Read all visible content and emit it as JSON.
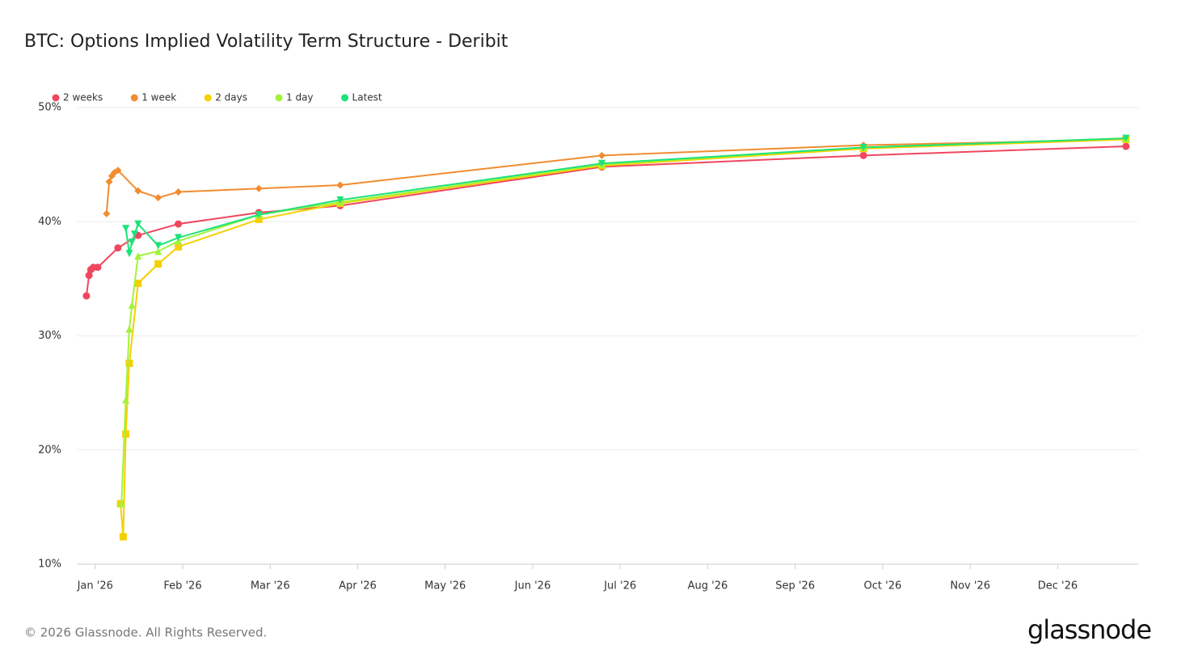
{
  "chart_data": {
    "type": "line",
    "title": "BTC: Options Implied Volatility Term Structure - Deribit",
    "xlim": [
      -0.21,
      11.92
    ],
    "ylim": [
      10,
      50
    ],
    "xticks": [
      {
        "value": 0,
        "label": "Jan '26"
      },
      {
        "value": 1,
        "label": "Feb '26"
      },
      {
        "value": 2,
        "label": "Mar '26"
      },
      {
        "value": 3,
        "label": "Apr '26"
      },
      {
        "value": 4,
        "label": "May '26"
      },
      {
        "value": 5,
        "label": "Jun '26"
      },
      {
        "value": 6,
        "label": "Jul '26"
      },
      {
        "value": 7,
        "label": "Aug '26"
      },
      {
        "value": 8,
        "label": "Sep '26"
      },
      {
        "value": 9,
        "label": "Oct '26"
      },
      {
        "value": 10,
        "label": "Nov '26"
      },
      {
        "value": 11,
        "label": "Dec '26"
      }
    ],
    "yticks": [
      {
        "value": 10,
        "label": "10%"
      },
      {
        "value": 20,
        "label": "20%"
      },
      {
        "value": 30,
        "label": "30%"
      },
      {
        "value": 40,
        "label": "40%"
      },
      {
        "value": 50,
        "label": "50%"
      }
    ],
    "grid": true,
    "legend": "top-left",
    "series": [
      {
        "name": "2 weeks",
        "color": "#f0475f",
        "marker": "circle",
        "x": [
          -0.1,
          -0.07,
          -0.05,
          -0.02,
          0.03,
          0.26,
          0.49,
          0.95,
          1.87,
          2.8,
          5.79,
          8.78,
          11.78
        ],
        "values": [
          33.5,
          35.3,
          35.8,
          36.0,
          36.0,
          37.7,
          38.8,
          39.8,
          40.8,
          41.4,
          44.8,
          45.8,
          46.6
        ]
      },
      {
        "name": "1 week",
        "color": "#f28c30",
        "marker": "diamond",
        "x": [
          0.13,
          0.16,
          0.19,
          0.22,
          0.26,
          0.49,
          0.72,
          0.95,
          1.87,
          2.8,
          5.79,
          8.78,
          11.78
        ],
        "values": [
          40.7,
          43.5,
          44.0,
          44.3,
          44.5,
          42.7,
          42.1,
          42.6,
          42.9,
          43.2,
          45.8,
          46.7,
          47.2
        ]
      },
      {
        "name": "2 days",
        "color": "#f5d000",
        "marker": "square",
        "x": [
          0.29,
          0.32,
          0.35,
          0.39,
          0.49,
          0.72,
          0.95,
          1.87,
          2.8,
          5.79,
          8.78,
          11.78
        ],
        "values": [
          15.3,
          12.4,
          21.4,
          27.6,
          34.6,
          36.3,
          37.8,
          40.2,
          41.6,
          44.9,
          46.4,
          47.2
        ]
      },
      {
        "name": "1 day",
        "color": "#a4f23a",
        "marker": "triangle-up",
        "x": [
          0.3,
          0.35,
          0.39,
          0.42,
          0.49,
          0.72,
          0.95,
          1.87,
          2.8,
          5.79,
          8.78,
          11.78
        ],
        "values": [
          15.3,
          24.4,
          30.6,
          32.7,
          37.0,
          37.4,
          38.3,
          40.6,
          41.7,
          45.0,
          46.5,
          47.3
        ]
      },
      {
        "name": "Latest",
        "color": "#1de27a",
        "marker": "triangle-down",
        "x": [
          0.35,
          0.39,
          0.42,
          0.45,
          0.49,
          0.72,
          0.95,
          1.87,
          2.8,
          5.79,
          8.78,
          11.78
        ],
        "values": [
          39.4,
          37.2,
          38.2,
          38.9,
          39.8,
          37.9,
          38.6,
          40.6,
          41.9,
          45.1,
          46.5,
          47.3
        ]
      }
    ]
  },
  "footer": {
    "copyright": "© 2026 Glassnode. All Rights Reserved.",
    "brand": "glassnode"
  }
}
